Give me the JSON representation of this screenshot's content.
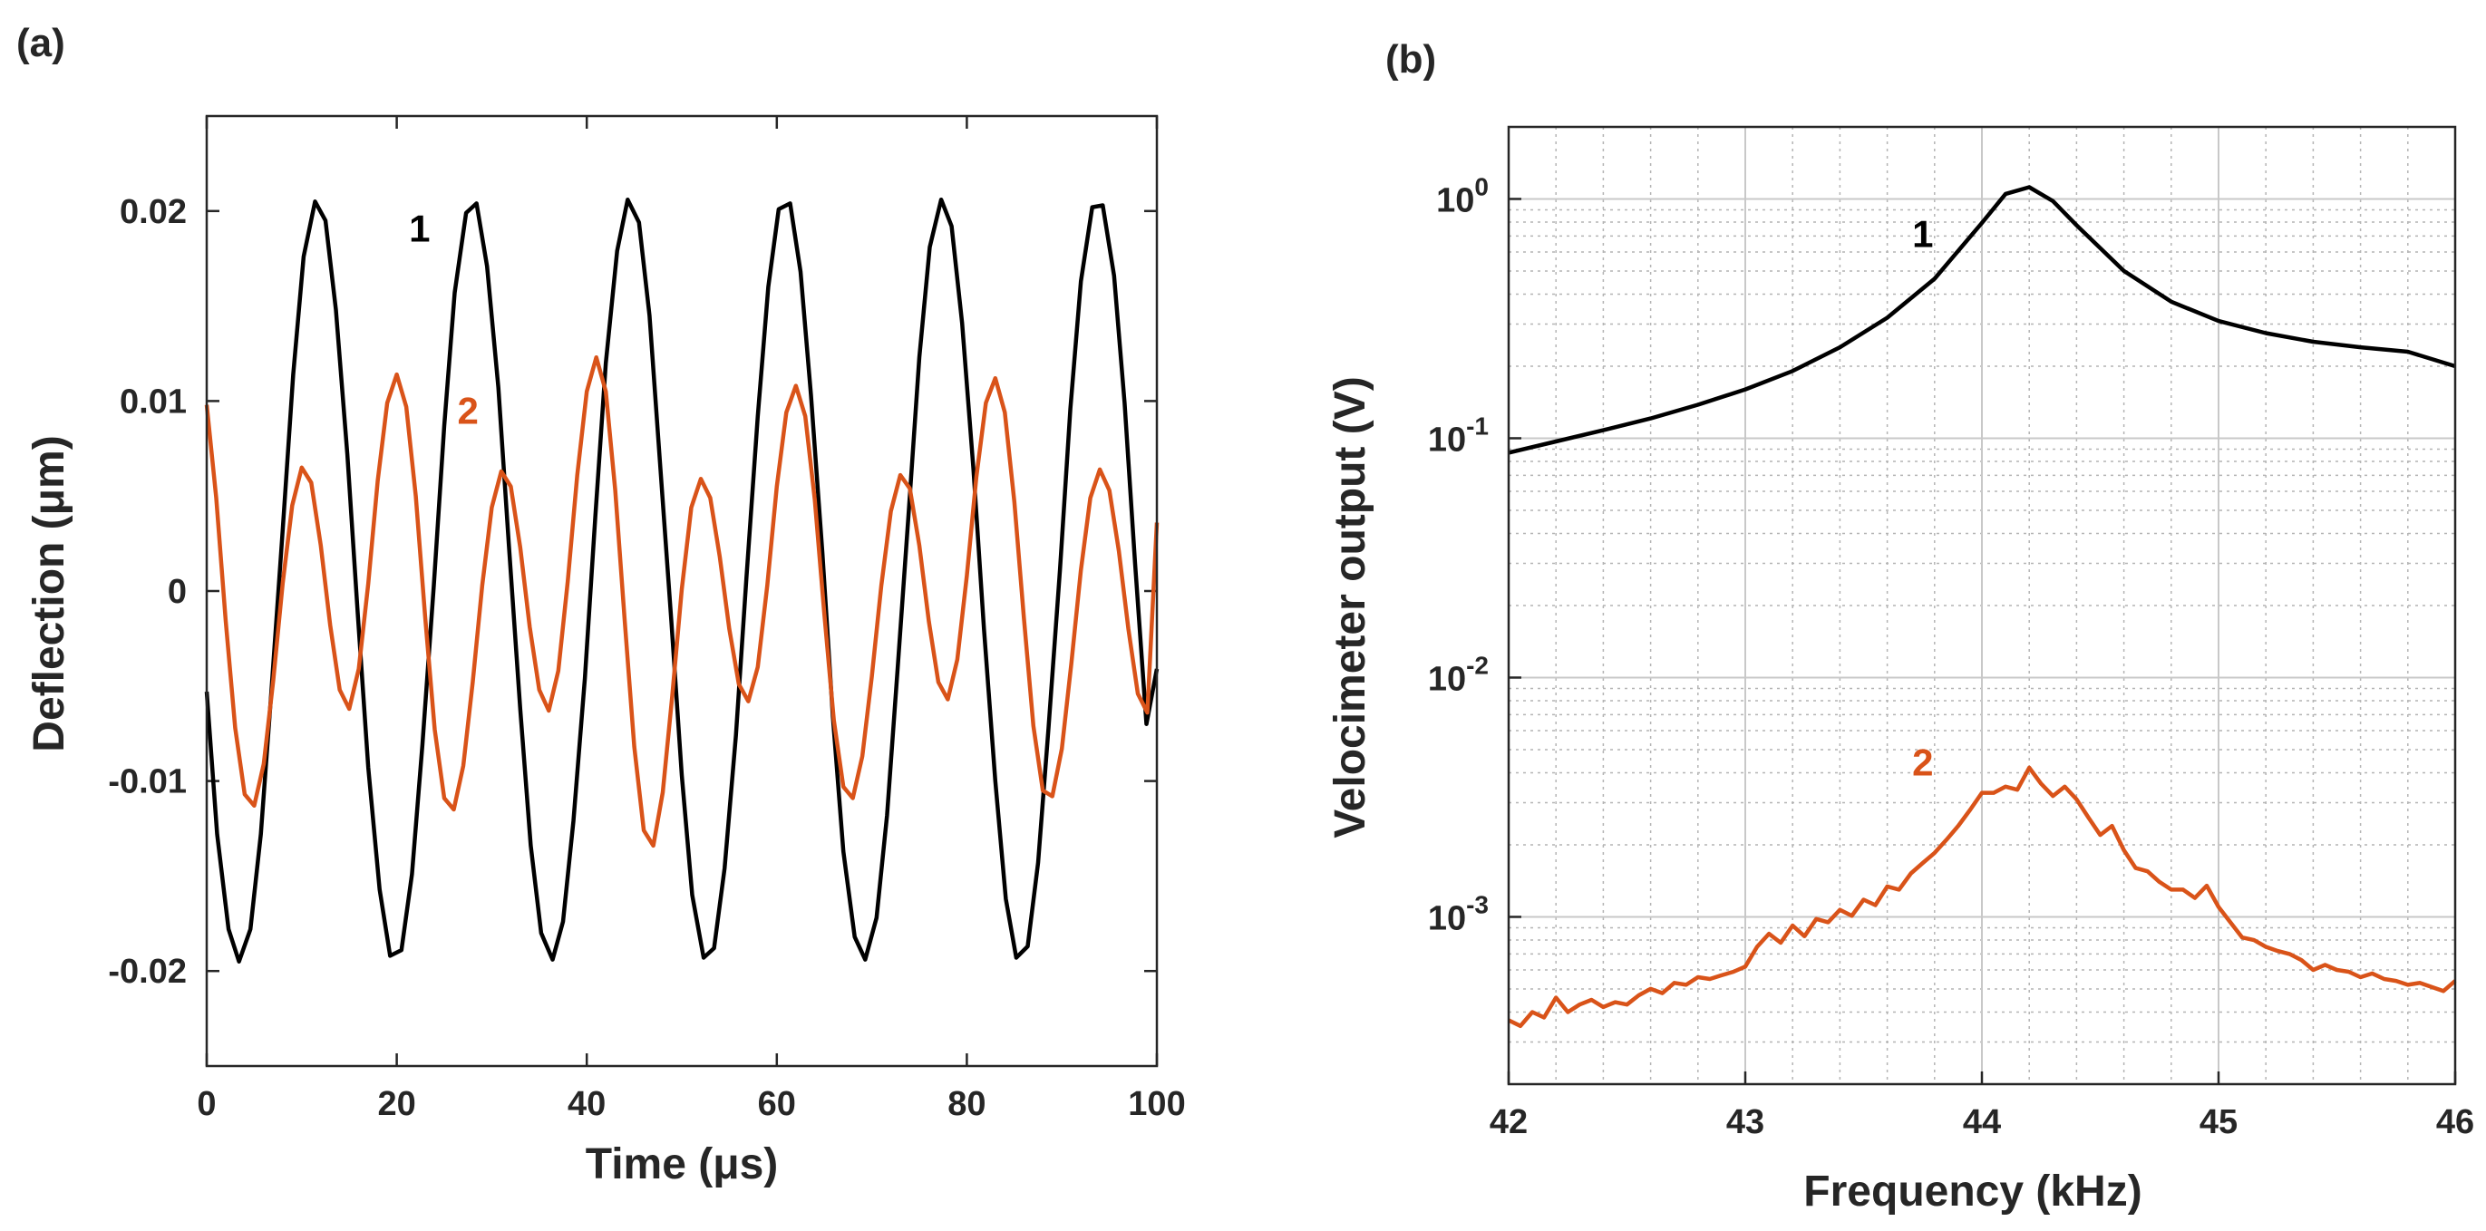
{
  "chart_data": [
    {
      "type": "line",
      "panel_label": "(a)",
      "xlabel": "Time (μs)",
      "ylabel": "Deflection (μm)",
      "xlim": [
        0,
        100
      ],
      "ylim": [
        -0.025,
        0.025
      ],
      "xticks": [
        0,
        20,
        40,
        60,
        80,
        100
      ],
      "xtick_labels": [
        "0",
        "20",
        "40",
        "60",
        "80",
        "100"
      ],
      "yticks": [
        -0.02,
        -0.01,
        0,
        0.01,
        0.02
      ],
      "ytick_labels": [
        "-0.02",
        "-0.01",
        "0",
        "0.01",
        "0.02"
      ],
      "grid": false,
      "series": [
        {
          "name": "1",
          "color": "#000000",
          "x": [
            0,
            1.1,
            2.3,
            3.4,
            4.6,
            5.7,
            6.8,
            8,
            9.1,
            10.2,
            11.4,
            12.5,
            13.6,
            14.8,
            15.9,
            17,
            18.2,
            19.3,
            20.5,
            21.6,
            22.7,
            23.9,
            25,
            26.1,
            27.3,
            28.4,
            29.5,
            30.7,
            31.8,
            33,
            34.1,
            35.2,
            36.4,
            37.5,
            38.6,
            39.8,
            40.9,
            42,
            43.2,
            44.3,
            45.5,
            46.6,
            47.7,
            48.9,
            50,
            51.1,
            52.3,
            53.4,
            54.5,
            55.7,
            56.8,
            58,
            59.1,
            60.2,
            61.4,
            62.5,
            63.6,
            64.8,
            65.9,
            67,
            68.2,
            69.3,
            70.5,
            71.6,
            72.7,
            73.9,
            75,
            76.1,
            77.3,
            78.4,
            79.5,
            80.7,
            81.8,
            83,
            84.1,
            85.2,
            86.4,
            87.5,
            88.6,
            89.8,
            90.9,
            92,
            93.2,
            94.3,
            95.5,
            96.6,
            97.7,
            98.9,
            100
          ],
          "y": [
            -0.0053,
            -0.0128,
            -0.0178,
            -0.0195,
            -0.0178,
            -0.0128,
            -0.0053,
            0.0032,
            0.0114,
            0.0176,
            0.0205,
            0.0195,
            0.0148,
            0.0072,
            -0.0012,
            -0.0093,
            -0.0157,
            -0.0192,
            -0.0189,
            -0.0149,
            -0.0081,
            0.0003,
            0.0087,
            0.0157,
            0.0199,
            0.0204,
            0.0171,
            0.0107,
            0.0024,
            -0.0062,
            -0.0134,
            -0.018,
            -0.0194,
            -0.0174,
            -0.0121,
            -0.0046,
            0.0039,
            0.012,
            0.0179,
            0.0206,
            0.0194,
            0.0145,
            0.0068,
            -0.0016,
            -0.0097,
            -0.016,
            -0.0193,
            -0.0188,
            -0.0146,
            -0.0076,
            0.0007,
            0.0092,
            0.016,
            0.0201,
            0.0204,
            0.0168,
            0.0103,
            0.002,
            -0.0066,
            -0.0137,
            -0.0182,
            -0.0194,
            -0.0172,
            -0.0118,
            -0.0042,
            0.0043,
            0.0123,
            0.0181,
            0.0206,
            0.0192,
            0.0141,
            0.0064,
            -0.002,
            -0.01,
            -0.0162,
            -0.0193,
            -0.0187,
            -0.0143,
            -0.0072,
            0.0011,
            0.0096,
            0.0163,
            0.0202,
            0.0203,
            0.0166,
            0.0099,
            0.0015,
            -0.007,
            -0.0041
          ]
        },
        {
          "name": "2",
          "color": "#d95319",
          "x": [
            0,
            1,
            2,
            3,
            4,
            5,
            6,
            7,
            8,
            9,
            10,
            11,
            12,
            13,
            14,
            15,
            16,
            17,
            18,
            19,
            20,
            21,
            22,
            23,
            24,
            25,
            26,
            27,
            28,
            29,
            30,
            31,
            32,
            33,
            34,
            35,
            36,
            37,
            38,
            39,
            40,
            41,
            42,
            43,
            44,
            45,
            46,
            47,
            48,
            49,
            50,
            51,
            52,
            53,
            54,
            55,
            56,
            57,
            58,
            59,
            60,
            61,
            62,
            63,
            64,
            65,
            66,
            67,
            68,
            69,
            70,
            71,
            72,
            73,
            74,
            75,
            76,
            77,
            78,
            79,
            80,
            81,
            82,
            83,
            84,
            85,
            86,
            87,
            88,
            89,
            90,
            91,
            92,
            93,
            94,
            95,
            96,
            97,
            98,
            99,
            100
          ],
          "y": [
            0.0098,
            0.0049,
            -0.0016,
            -0.0072,
            -0.0107,
            -0.0113,
            -0.0091,
            -0.0047,
            0.0004,
            0.0045,
            0.0065,
            0.0057,
            0.0024,
            -0.0018,
            -0.0052,
            -0.0062,
            -0.0041,
            0.0004,
            0.0058,
            0.0099,
            0.0114,
            0.0097,
            0.005,
            -0.0014,
            -0.0073,
            -0.0109,
            -0.0115,
            -0.0092,
            -0.0048,
            0.0003,
            0.0044,
            0.0063,
            0.0055,
            0.0023,
            -0.0019,
            -0.0052,
            -0.0063,
            -0.0042,
            0.0005,
            0.0061,
            0.0105,
            0.0123,
            0.0105,
            0.0053,
            -0.0016,
            -0.0082,
            -0.0126,
            -0.0134,
            -0.0106,
            -0.0055,
            0.0001,
            0.0044,
            0.0059,
            0.0049,
            0.0018,
            -0.002,
            -0.0049,
            -0.0058,
            -0.004,
            0.0003,
            0.0055,
            0.0094,
            0.0108,
            0.0092,
            0.0048,
            -0.0012,
            -0.0068,
            -0.0103,
            -0.0109,
            -0.0087,
            -0.0045,
            0.0003,
            0.0042,
            0.0061,
            0.0054,
            0.0024,
            -0.0016,
            -0.0048,
            -0.0057,
            -0.0036,
            0.0008,
            0.006,
            0.0099,
            0.0112,
            0.0094,
            0.0047,
            -0.0014,
            -0.0071,
            -0.0105,
            -0.0108,
            -0.0083,
            -0.0038,
            0.0011,
            0.0049,
            0.0064,
            0.0053,
            0.0021,
            -0.002,
            -0.0054,
            -0.0064,
            0.0036
          ]
        }
      ],
      "annotations": [
        {
          "text": "1",
          "x": 22.4,
          "y": 0.0184,
          "color": "#000000"
        },
        {
          "text": "2",
          "x": 27.5,
          "y": 0.0088,
          "color": "#d95319"
        }
      ]
    },
    {
      "type": "line",
      "panel_label": "(b)",
      "xlabel": "Frequency (kHz)",
      "ylabel": "Velocimeter output (V)",
      "xlim": [
        42,
        46
      ],
      "ylim": [
        0.0002,
        2
      ],
      "yscale": "log",
      "xticks": [
        42,
        43,
        44,
        45,
        46
      ],
      "xtick_labels": [
        "42",
        "43",
        "44",
        "45",
        "46"
      ],
      "yticks": [
        0.001,
        0.01,
        0.1,
        1
      ],
      "ytick_bases": [
        "10",
        "10",
        "10",
        "10"
      ],
      "ytick_exponents": [
        "-3",
        "-2",
        "-1",
        "0"
      ],
      "grid": true,
      "series": [
        {
          "name": "1",
          "color": "#000000",
          "x": [
            42,
            42.2,
            42.4,
            42.6,
            42.8,
            43,
            43.2,
            43.4,
            43.6,
            43.8,
            44,
            44.1,
            44.2,
            44.3,
            44.4,
            44.6,
            44.8,
            45,
            45.2,
            45.4,
            45.6,
            45.8,
            46
          ],
          "y": [
            0.087,
            0.097,
            0.108,
            0.121,
            0.138,
            0.16,
            0.191,
            0.24,
            0.319,
            0.464,
            0.794,
            1.05,
            1.12,
            0.98,
            0.776,
            0.5,
            0.372,
            0.309,
            0.275,
            0.253,
            0.24,
            0.23,
            0.2
          ]
        },
        {
          "name": "2",
          "color": "#d95319",
          "x": [
            42,
            42.05,
            42.1,
            42.15,
            42.2,
            42.25,
            42.3,
            42.35,
            42.4,
            42.45,
            42.5,
            42.55,
            42.6,
            42.65,
            42.7,
            42.75,
            42.8,
            42.85,
            42.9,
            42.95,
            43,
            43.05,
            43.1,
            43.15,
            43.2,
            43.25,
            43.3,
            43.35,
            43.4,
            43.45,
            43.5,
            43.55,
            43.6,
            43.65,
            43.7,
            43.75,
            43.8,
            43.85,
            43.9,
            43.95,
            44,
            44.05,
            44.1,
            44.15,
            44.2,
            44.25,
            44.3,
            44.35,
            44.4,
            44.45,
            44.5,
            44.55,
            44.6,
            44.65,
            44.7,
            44.75,
            44.8,
            44.85,
            44.9,
            44.95,
            45,
            45.05,
            45.1,
            45.15,
            45.2,
            45.25,
            45.3,
            45.35,
            45.4,
            45.45,
            45.5,
            45.55,
            45.6,
            45.65,
            45.7,
            45.75,
            45.8,
            45.85,
            45.9,
            45.95,
            46
          ],
          "y": [
            0.00037,
            0.00035,
            0.0004,
            0.00038,
            0.00046,
            0.0004,
            0.00043,
            0.00045,
            0.00042,
            0.00044,
            0.00043,
            0.00047,
            0.0005,
            0.00048,
            0.00053,
            0.00052,
            0.00056,
            0.00055,
            0.00057,
            0.00059,
            0.00062,
            0.00075,
            0.00085,
            0.00078,
            0.00092,
            0.00083,
            0.00098,
            0.00095,
            0.00107,
            0.00101,
            0.00118,
            0.00112,
            0.00134,
            0.0013,
            0.00152,
            0.00168,
            0.00185,
            0.0021,
            0.0024,
            0.0028,
            0.0033,
            0.0033,
            0.0035,
            0.0034,
            0.0042,
            0.0036,
            0.0032,
            0.0035,
            0.0031,
            0.0026,
            0.0022,
            0.0024,
            0.0019,
            0.0016,
            0.00155,
            0.0014,
            0.0013,
            0.0013,
            0.0012,
            0.00135,
            0.0011,
            0.00095,
            0.00082,
            0.0008,
            0.00075,
            0.00072,
            0.0007,
            0.00066,
            0.0006,
            0.00063,
            0.0006,
            0.00059,
            0.00056,
            0.00058,
            0.00055,
            0.00054,
            0.00052,
            0.00053,
            0.00051,
            0.00049,
            0.00054
          ]
        }
      ],
      "annotations": [
        {
          "text": "1",
          "x": 43.75,
          "y": 0.63,
          "color": "#000000"
        },
        {
          "text": "2",
          "x": 43.75,
          "y": 0.0039,
          "color": "#d95319"
        }
      ]
    }
  ]
}
